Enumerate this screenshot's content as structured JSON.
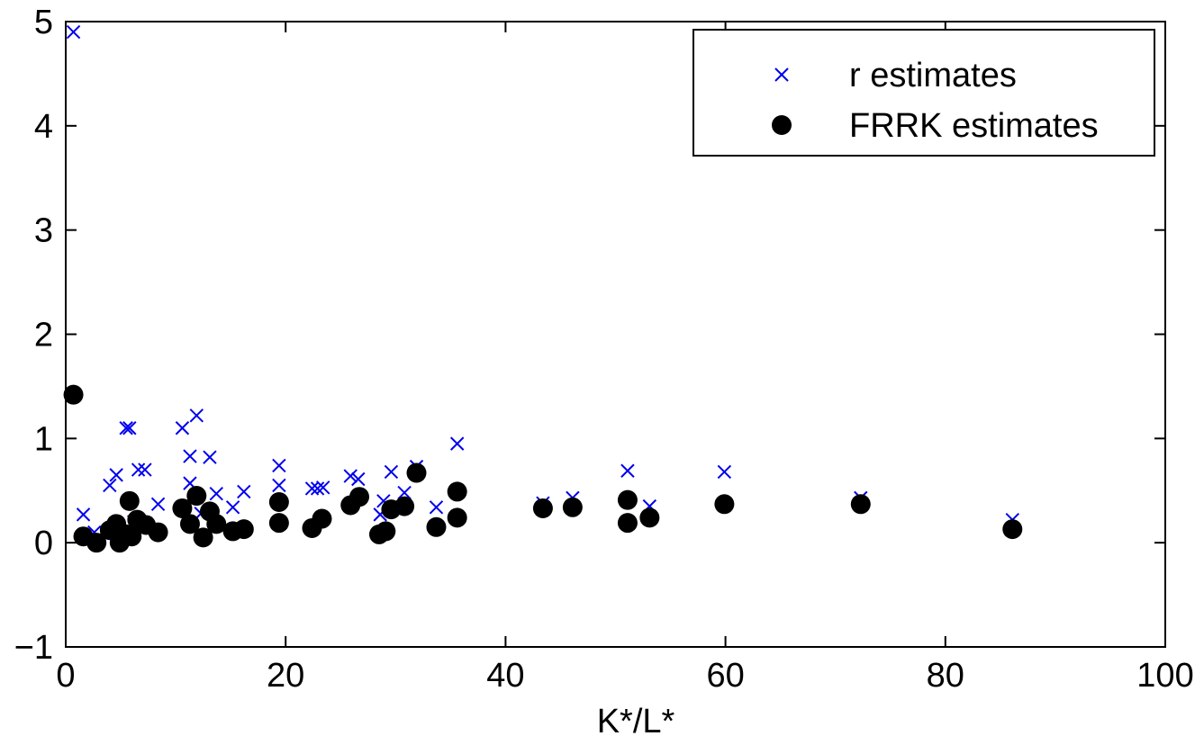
{
  "chart_data": {
    "type": "scatter",
    "title": "",
    "xlabel": "K*/L*",
    "ylabel": "",
    "xlim": [
      0,
      100
    ],
    "ylim": [
      -1,
      5
    ],
    "xticks": [
      "0",
      "20",
      "40",
      "60",
      "80",
      "100"
    ],
    "yticks": [
      "−1",
      "0",
      "1",
      "2",
      "3",
      "4",
      "5"
    ],
    "grid": false,
    "legend_position": "top-right",
    "series": [
      {
        "name": "r estimates",
        "marker": "x",
        "color": "#0000ee",
        "points": [
          [
            0.7,
            4.9
          ],
          [
            1.6,
            0.27
          ],
          [
            2.6,
            0.1
          ],
          [
            4.0,
            0.55
          ],
          [
            4.6,
            0.65
          ],
          [
            5.5,
            1.1
          ],
          [
            5.8,
            1.1
          ],
          [
            6.2,
            0.2
          ],
          [
            6.6,
            0.7
          ],
          [
            7.2,
            0.7
          ],
          [
            8.4,
            0.37
          ],
          [
            10.6,
            1.1
          ],
          [
            11.3,
            0.83
          ],
          [
            11.3,
            0.57
          ],
          [
            11.9,
            1.22
          ],
          [
            12.3,
            0.28
          ],
          [
            13.1,
            0.82
          ],
          [
            13.7,
            0.47
          ],
          [
            15.2,
            0.34
          ],
          [
            16.2,
            0.49
          ],
          [
            19.4,
            0.74
          ],
          [
            19.4,
            0.55
          ],
          [
            22.4,
            0.52
          ],
          [
            22.9,
            0.52
          ],
          [
            23.4,
            0.53
          ],
          [
            25.9,
            0.64
          ],
          [
            26.6,
            0.61
          ],
          [
            28.6,
            0.27
          ],
          [
            28.9,
            0.4
          ],
          [
            29.6,
            0.68
          ],
          [
            30.8,
            0.48
          ],
          [
            31.9,
            0.73
          ],
          [
            33.7,
            0.34
          ],
          [
            35.6,
            0.95
          ],
          [
            43.4,
            0.38
          ],
          [
            46.1,
            0.43
          ],
          [
            51.1,
            0.69
          ],
          [
            53.1,
            0.35
          ],
          [
            59.9,
            0.68
          ],
          [
            72.3,
            0.43
          ],
          [
            86.1,
            0.22
          ]
        ]
      },
      {
        "name": "FRRK estimates",
        "marker": "o",
        "color": "#000000",
        "points": [
          [
            0.7,
            1.42
          ],
          [
            1.6,
            0.06
          ],
          [
            2.8,
            0.0
          ],
          [
            4.0,
            0.12
          ],
          [
            4.6,
            0.18
          ],
          [
            4.9,
            0.0
          ],
          [
            5.5,
            0.08
          ],
          [
            5.8,
            0.4
          ],
          [
            6.0,
            0.06
          ],
          [
            6.5,
            0.22
          ],
          [
            7.3,
            0.17
          ],
          [
            8.4,
            0.1
          ],
          [
            10.6,
            0.33
          ],
          [
            11.3,
            0.18
          ],
          [
            11.9,
            0.45
          ],
          [
            12.5,
            0.05
          ],
          [
            13.1,
            0.3
          ],
          [
            13.7,
            0.18
          ],
          [
            15.2,
            0.11
          ],
          [
            16.2,
            0.13
          ],
          [
            19.4,
            0.39
          ],
          [
            19.4,
            0.19
          ],
          [
            22.4,
            0.14
          ],
          [
            23.3,
            0.23
          ],
          [
            25.9,
            0.36
          ],
          [
            26.7,
            0.44
          ],
          [
            28.5,
            0.08
          ],
          [
            29.1,
            0.11
          ],
          [
            29.6,
            0.32
          ],
          [
            30.8,
            0.35
          ],
          [
            31.9,
            0.67
          ],
          [
            33.7,
            0.15
          ],
          [
            35.6,
            0.49
          ],
          [
            35.6,
            0.24
          ],
          [
            43.4,
            0.33
          ],
          [
            46.1,
            0.34
          ],
          [
            51.1,
            0.41
          ],
          [
            51.1,
            0.19
          ],
          [
            53.1,
            0.24
          ],
          [
            59.9,
            0.37
          ],
          [
            72.3,
            0.37
          ],
          [
            86.1,
            0.13
          ]
        ]
      }
    ]
  }
}
